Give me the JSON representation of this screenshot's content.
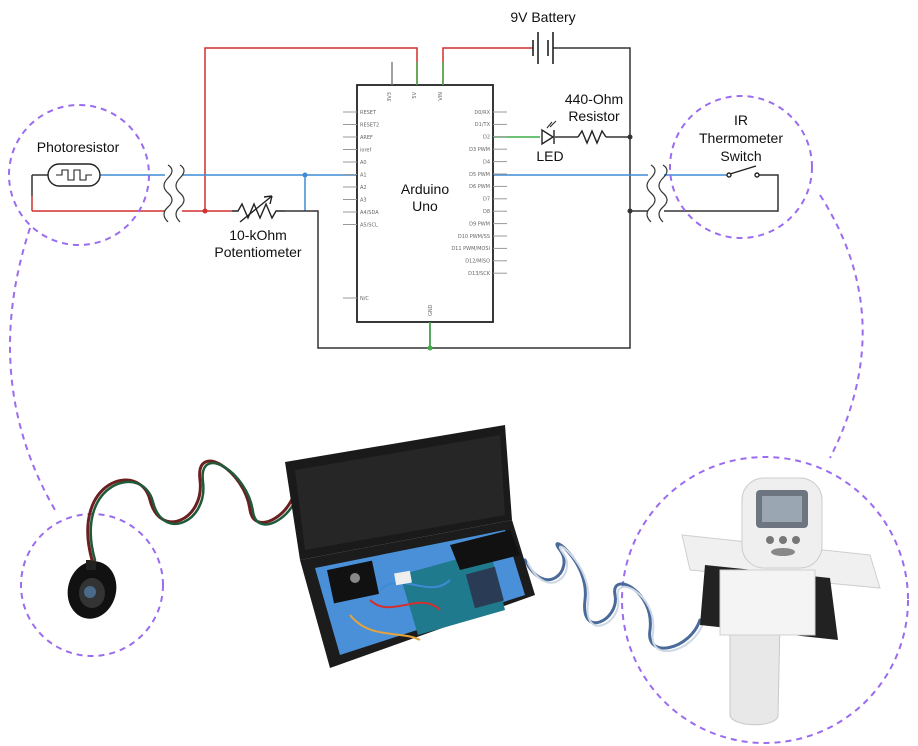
{
  "labels": {
    "battery": "9V Battery",
    "photoresistor": "Photoresistor",
    "potentiometer_line1": "10-kOhm",
    "potentiometer_line2": "Potentiometer",
    "arduino_line1": "Arduino",
    "arduino_line2": "Uno",
    "resistor_line1": "440-Ohm",
    "resistor_line2": "Resistor",
    "led": "LED",
    "switch_line1": "IR",
    "switch_line2": "Thermometer",
    "switch_line3": "Switch"
  },
  "arduino_pins": {
    "left": [
      "RESET",
      "RESET2",
      "AREF",
      "ioref",
      "A0",
      "A1",
      "A2",
      "A3",
      "A4/SDA",
      "A5/SCL",
      "N/C"
    ],
    "right": [
      "D0/RX",
      "D1/TX",
      "D2",
      "D3 PWM",
      "D4",
      "D5 PWM",
      "D6 PWM",
      "D7",
      "D8",
      "D9 PWM",
      "D10 PWM/SS",
      "D11 PWM/MOSI",
      "D12/MISO",
      "D13/SCK"
    ],
    "top": [
      "3V3",
      "5V",
      "VIN"
    ],
    "bottom": "GND"
  },
  "colors": {
    "wire_red": "#d32f2f",
    "wire_blue": "#3d8bd4",
    "wire_black": "#333333",
    "wire_green": "#3fae49",
    "callout": "#9b6cf0",
    "enclosure": "#4a90d9"
  }
}
